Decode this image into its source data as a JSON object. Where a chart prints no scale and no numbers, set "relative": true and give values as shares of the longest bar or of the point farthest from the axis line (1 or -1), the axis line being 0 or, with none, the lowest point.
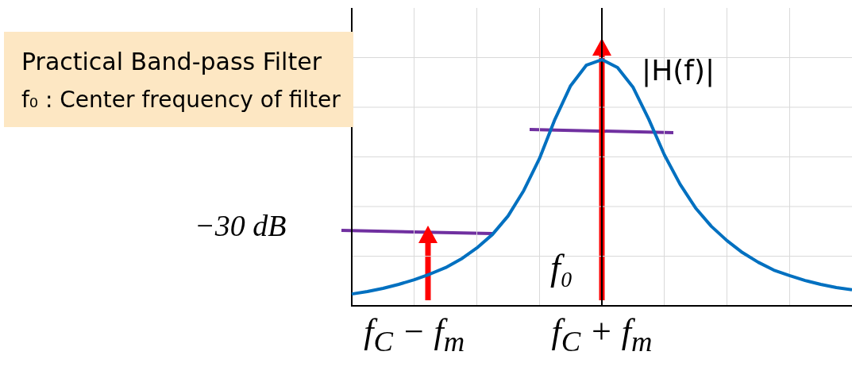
{
  "chart_data": {
    "type": "line",
    "relative": true,
    "color": "#0070c0",
    "marker": "none",
    "grid": true,
    "categories": [
      null,
      null,
      null,
      null,
      "f$_{C}$ − f$_{m}$",
      null,
      null,
      null,
      null,
      null,
      null,
      null,
      null,
      null,
      null,
      null,
      "f$_{C}$ + f$_{m}$",
      null,
      null,
      null,
      null,
      null,
      null,
      null,
      null,
      null,
      null,
      null,
      null,
      null,
      null,
      null,
      null
    ],
    "values": [
      0.048,
      0.058,
      0.071,
      0.087,
      0.106,
      0.129,
      0.155,
      0.19,
      0.235,
      0.29,
      0.365,
      0.468,
      0.597,
      0.758,
      0.894,
      0.977,
      1,
      0.968,
      0.887,
      0.758,
      0.613,
      0.494,
      0.397,
      0.323,
      0.265,
      0.216,
      0.177,
      0.145,
      0.123,
      0.103,
      0.087,
      0.074,
      0.065
    ],
    "ref_lines": [
      {
        "axis": "x",
        "value": "f$_{C}$ + f$_{m}$",
        "color": "#000000"
      }
    ],
    "annotations": [
      "Practical Band-pass Filter",
      "f₀ : Center frequency of filter",
      "|H(f)|",
      "−30 dB",
      "f₀"
    ]
  }
}
